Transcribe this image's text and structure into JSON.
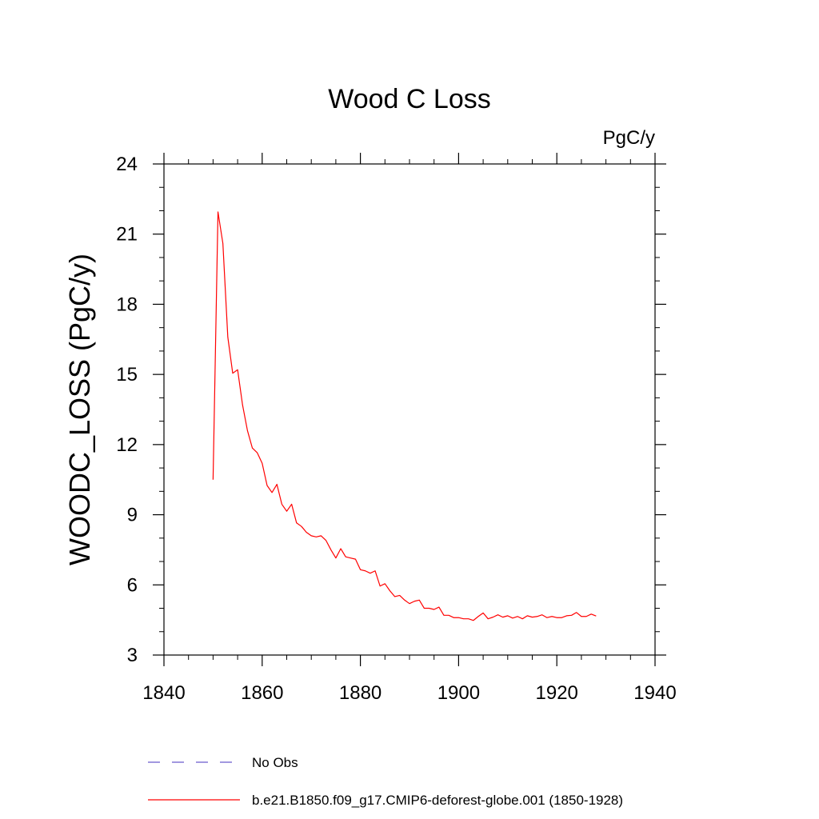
{
  "chart_data": {
    "type": "line",
    "title": "Wood C Loss",
    "units": "PgC/y",
    "xlabel": "",
    "ylabel": "WOODC_LOSS  (PgC/y)",
    "xlim": [
      1840,
      1940
    ],
    "ylim": [
      3,
      24
    ],
    "xticks": [
      1840,
      1860,
      1880,
      1900,
      1920,
      1940
    ],
    "yticks": [
      3,
      6,
      9,
      12,
      15,
      18,
      21,
      24
    ],
    "legend_position": "bottom",
    "series": [
      {
        "name": "No Obs",
        "color": "#6a5acd",
        "style": "dashed",
        "x": [],
        "y": []
      },
      {
        "name": "b.e21.B1850.f09_g17.CMIP6-deforest-globe.001 (1850-1928)",
        "color": "#ff0000",
        "style": "solid",
        "x": [
          1850,
          1851,
          1852,
          1853,
          1854,
          1855,
          1856,
          1857,
          1858,
          1859,
          1860,
          1861,
          1862,
          1863,
          1864,
          1865,
          1866,
          1867,
          1868,
          1869,
          1870,
          1871,
          1872,
          1873,
          1874,
          1875,
          1876,
          1877,
          1878,
          1879,
          1880,
          1881,
          1882,
          1883,
          1884,
          1885,
          1886,
          1887,
          1888,
          1889,
          1890,
          1891,
          1892,
          1893,
          1894,
          1895,
          1896,
          1897,
          1898,
          1899,
          1900,
          1901,
          1902,
          1903,
          1904,
          1905,
          1906,
          1907,
          1908,
          1909,
          1910,
          1911,
          1912,
          1913,
          1914,
          1915,
          1916,
          1917,
          1918,
          1919,
          1920,
          1921,
          1922,
          1923,
          1924,
          1925,
          1926,
          1927,
          1928
        ],
        "y": [
          10.5,
          21.95,
          20.6,
          16.6,
          15.05,
          15.2,
          13.7,
          12.6,
          11.85,
          11.65,
          11.2,
          10.25,
          9.95,
          10.3,
          9.45,
          9.15,
          9.45,
          8.65,
          8.5,
          8.25,
          8.1,
          8.05,
          8.1,
          7.9,
          7.5,
          7.15,
          7.55,
          7.2,
          7.15,
          7.1,
          6.65,
          6.6,
          6.5,
          6.6,
          5.95,
          6.05,
          5.75,
          5.5,
          5.55,
          5.35,
          5.2,
          5.3,
          5.35,
          5.0,
          5.0,
          4.95,
          5.05,
          4.7,
          4.7,
          4.6,
          4.6,
          4.55,
          4.55,
          4.48,
          4.65,
          4.8,
          4.55,
          4.62,
          4.72,
          4.62,
          4.68,
          4.58,
          4.65,
          4.55,
          4.68,
          4.62,
          4.65,
          4.72,
          4.6,
          4.65,
          4.6,
          4.6,
          4.68,
          4.7,
          4.82,
          4.65,
          4.65,
          4.75,
          4.67
        ]
      }
    ]
  }
}
